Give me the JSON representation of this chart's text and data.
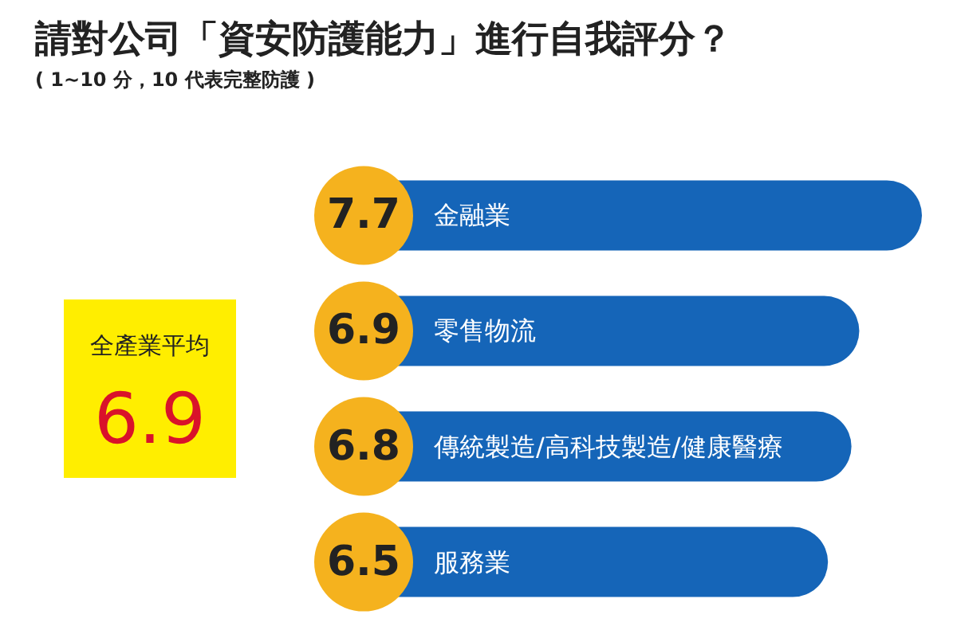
{
  "chart_data": {
    "type": "bar",
    "orientation": "horizontal",
    "title": "請對公司「資安防護能力」進行自我評分？",
    "subtitle": "( 1~10 分，10 代表完整防護 )",
    "categories": [
      "金融業",
      "零售物流",
      "傳統製造/高科技製造/健康醫療",
      "服務業"
    ],
    "values": [
      7.7,
      6.9,
      6.8,
      6.5
    ],
    "color": "#1565b8",
    "data_labels": true,
    "annotations": [
      "全產業平均",
      "6.9"
    ]
  }
}
